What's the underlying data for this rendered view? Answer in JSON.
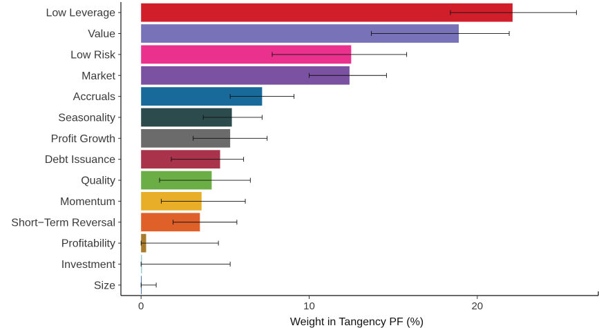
{
  "chart_data": {
    "type": "bar",
    "orientation": "horizontal",
    "xlabel": "Weight in Tangency PF (%)",
    "ylabel": "",
    "xlim": [
      -1.2,
      27.2
    ],
    "xticks": [
      "0",
      "10",
      "20"
    ],
    "xtick_values": [
      0,
      10,
      20
    ],
    "categories": [
      "Low Leverage",
      "Value",
      "Low Risk",
      "Market",
      "Accruals",
      "Seasonality",
      "Profit Growth",
      "Debt Issuance",
      "Quality",
      "Momentum",
      "Short−Term Reversal",
      "Profitability",
      "Investment",
      "Size"
    ],
    "values": [
      22.1,
      18.9,
      12.5,
      12.4,
      7.2,
      5.4,
      5.3,
      4.7,
      4.2,
      3.6,
      3.5,
      0.3,
      0.05,
      0.0
    ],
    "error_low": [
      18.4,
      13.7,
      7.8,
      10.0,
      5.3,
      3.7,
      3.1,
      1.8,
      1.1,
      1.2,
      1.9,
      0.0,
      0.0,
      0.0
    ],
    "error_high": [
      25.9,
      21.9,
      15.8,
      14.6,
      9.1,
      7.2,
      7.5,
      6.1,
      6.5,
      6.2,
      5.7,
      4.6,
      5.3,
      0.9
    ],
    "colors": [
      "#d01f2a",
      "#7872b8",
      "#e9318d",
      "#7b51a1",
      "#176a9a",
      "#2c4b4d",
      "#6b6b6b",
      "#a8334a",
      "#6aae45",
      "#e8ae27",
      "#e0602a",
      "#a87c2a",
      "#7fc4c6",
      "#1f4f8f"
    ],
    "grid": false,
    "legend": "none"
  }
}
